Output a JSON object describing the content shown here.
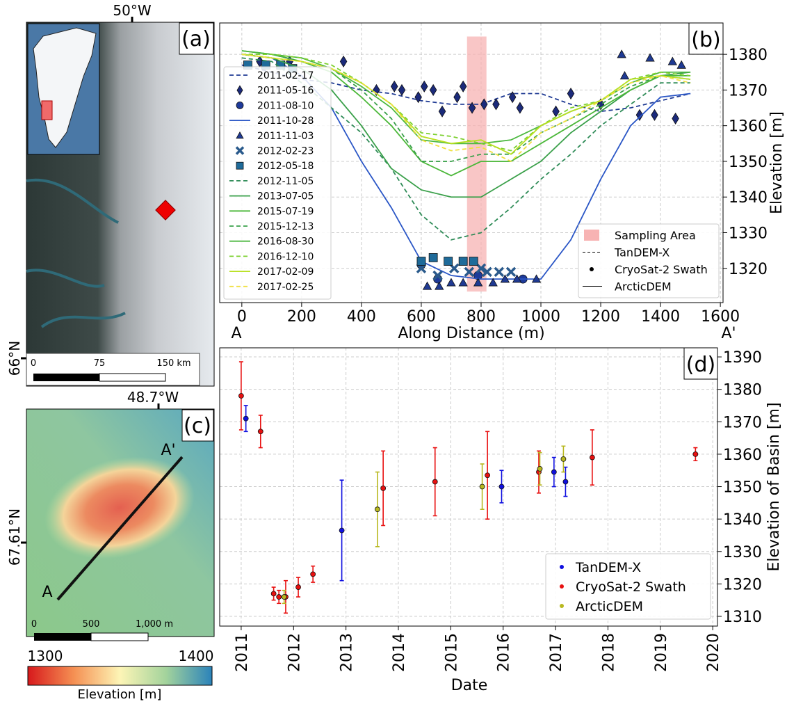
{
  "panels": {
    "a": {
      "label": "(a)",
      "lon_label": "50°W",
      "lat_label": "66°N",
      "scale": [
        "0",
        "75",
        "150 km"
      ]
    },
    "c": {
      "label": "(c)",
      "lon_label": "48.7°W",
      "lat_label": "67.61°N",
      "start": "A",
      "end": "A'",
      "scale": [
        "0",
        "500",
        "1,000 m"
      ]
    },
    "colorbar": {
      "min": 1300,
      "max": 1400,
      "label": "Elevation [m]"
    }
  },
  "chart_data": [
    {
      "type": "line",
      "panel_label": "(b)",
      "x_label": "Along Distance (m)",
      "y_label": "Elevation [m]",
      "start_label": "A",
      "end_label": "A'",
      "xlim": [
        -74,
        1609
      ],
      "ylim": [
        1310.4,
        1388.8
      ],
      "xticks": [
        0,
        200,
        400,
        600,
        800,
        1000,
        1200,
        1400,
        1600
      ],
      "yticks": [
        1320,
        1330,
        1340,
        1350,
        1360,
        1370,
        1380
      ],
      "grid": true,
      "sampling_area": {
        "name": "Sampling Area",
        "x": [
          753,
          818
        ],
        "y": [
          1313.5,
          1385
        ],
        "color": "#f7b3b3"
      },
      "style_legend": [
        {
          "name": "Sampling Area",
          "symbol": "rect"
        },
        {
          "name": "TanDEM-X",
          "symbol": "dashed"
        },
        {
          "name": "CryoSat-2 Swath",
          "symbol": "dot"
        },
        {
          "name": "ArcticDEM",
          "symbol": "solid"
        }
      ],
      "series": [
        {
          "name": "2011-02-17",
          "color": "#1f3a93",
          "style": "dashed",
          "x": [
            0,
            100,
            200,
            300,
            400,
            500,
            600,
            700,
            800,
            900,
            1000,
            1100,
            1200,
            1300,
            1400,
            1500
          ],
          "values": [
            1377,
            1375,
            1373,
            1372,
            1370,
            1369,
            1367,
            1366,
            1366,
            1369,
            1369,
            1366,
            1364,
            1365,
            1367,
            1369
          ]
        },
        {
          "name": "2011-05-16",
          "color": "#1b2a7a",
          "marker": "diamond",
          "x": [
            60,
            160,
            340,
            450,
            510,
            535,
            590,
            610,
            640,
            670,
            720,
            740,
            770,
            810,
            850,
            905,
            930,
            1050,
            1100,
            1200,
            1330,
            1380,
            1450
          ],
          "values": [
            1378,
            1378,
            1378,
            1370,
            1371,
            1370,
            1368,
            1371,
            1370,
            1364,
            1368,
            1371,
            1365,
            1366,
            1366,
            1368,
            1365,
            1364,
            1369,
            1366,
            1363,
            1363,
            1362
          ]
        },
        {
          "name": "2011-08-10",
          "color": "#1e3a9a",
          "marker": "circle",
          "x": [
            600,
            655,
            790,
            940
          ],
          "values": [
            1321,
            1317,
            1318,
            1317
          ]
        },
        {
          "name": "2011-10-28",
          "color": "#2a56c6",
          "style": "solid",
          "x": [
            0,
            100,
            200,
            300,
            400,
            500,
            600,
            700,
            800,
            900,
            1000,
            1100,
            1200,
            1300,
            1400,
            1500
          ],
          "values": [
            1380,
            1379,
            1374,
            1365,
            1350,
            1337,
            1322,
            1318,
            1317,
            1317,
            1317,
            1328,
            1345,
            1360,
            1368,
            1369
          ]
        },
        {
          "name": "2011-11-03",
          "color": "#1f3a93",
          "marker": "triangle",
          "x": [
            620,
            660,
            700,
            740,
            790,
            840,
            880,
            920,
            985,
            1270,
            1280,
            1365,
            1440,
            1470
          ],
          "values": [
            1315,
            1315,
            1316,
            1316,
            1316,
            1316,
            1317,
            1317,
            1317,
            1380,
            1374,
            1379,
            1378,
            1377
          ]
        },
        {
          "name": "2012-02-23",
          "color": "#2a5a8c",
          "marker": "x",
          "x": [
            600,
            655,
            710,
            760,
            800,
            820,
            860,
            900
          ],
          "values": [
            1320,
            1318,
            1320,
            1319,
            1320,
            1319,
            1319,
            1319
          ]
        },
        {
          "name": "2012-05-18",
          "color": "#1f6b9a",
          "marker": "square",
          "x": [
            20,
            80,
            130,
            170,
            600,
            640,
            690,
            740,
            775
          ],
          "values": [
            1377,
            1377,
            1377,
            1376,
            1322,
            1323,
            1322,
            1322,
            1322
          ]
        },
        {
          "name": "2012-11-05",
          "color": "#2e8b57",
          "style": "dashed",
          "x": [
            0,
            100,
            200,
            300,
            400,
            500,
            600,
            700,
            800,
            900,
            1000,
            1100,
            1200,
            1300,
            1400,
            1500
          ],
          "values": [
            1379,
            1378,
            1372,
            1365,
            1358,
            1348,
            1335,
            1328,
            1330,
            1337,
            1345,
            1352,
            1360,
            1366,
            1372,
            1372
          ]
        },
        {
          "name": "2013-07-05",
          "color": "#3aa04a",
          "style": "solid",
          "x": [
            0,
            100,
            200,
            300,
            400,
            500,
            600,
            700,
            800,
            900,
            1000,
            1100,
            1200,
            1300,
            1400,
            1500
          ],
          "values": [
            1380,
            1379,
            1376,
            1370,
            1360,
            1348,
            1342,
            1340,
            1340,
            1345,
            1350,
            1358,
            1364,
            1370,
            1374,
            1375
          ]
        },
        {
          "name": "2015-07-19",
          "color": "#4cb83a",
          "style": "solid",
          "x": [
            0,
            100,
            200,
            300,
            400,
            500,
            600,
            700,
            800,
            900,
            1000,
            1100,
            1200,
            1300,
            1400,
            1500
          ],
          "values": [
            1381,
            1380,
            1378,
            1375,
            1368,
            1360,
            1350,
            1346,
            1350,
            1350,
            1355,
            1360,
            1365,
            1370,
            1374,
            1374
          ]
        },
        {
          "name": "2015-12-13",
          "color": "#3aa04a",
          "style": "dashed",
          "x": [
            0,
            100,
            200,
            300,
            400,
            500,
            600,
            700,
            800,
            900,
            1000,
            1100,
            1200,
            1300,
            1400,
            1500
          ],
          "values": [
            1380,
            1380,
            1378,
            1376,
            1370,
            1362,
            1350,
            1350,
            1352,
            1352,
            1358,
            1362,
            1366,
            1371,
            1374,
            1373
          ]
        },
        {
          "name": "2016-08-30",
          "color": "#4cb840",
          "style": "solid",
          "x": [
            0,
            100,
            200,
            300,
            400,
            500,
            600,
            700,
            800,
            900,
            1000,
            1100,
            1200,
            1300,
            1400,
            1500
          ],
          "values": [
            1381,
            1380,
            1379,
            1376,
            1371,
            1365,
            1356,
            1355,
            1355,
            1356,
            1360,
            1364,
            1367,
            1372,
            1375,
            1375
          ]
        },
        {
          "name": "2016-12-10",
          "color": "#7dd030",
          "style": "dashed",
          "x": [
            0,
            100,
            200,
            300,
            400,
            500,
            600,
            700,
            800,
            900,
            1000,
            1100,
            1200,
            1300,
            1400,
            1500
          ],
          "values": [
            1380,
            1380,
            1379,
            1377,
            1372,
            1366,
            1358,
            1357,
            1355,
            1353,
            1360,
            1365,
            1367,
            1373,
            1375,
            1374
          ]
        },
        {
          "name": "2017-02-09",
          "color": "#b8e020",
          "style": "solid",
          "x": [
            0,
            100,
            200,
            300,
            400,
            500,
            600,
            700,
            800,
            900,
            1000,
            1100,
            1200,
            1300,
            1400,
            1500
          ],
          "values": [
            1380,
            1379,
            1378,
            1376,
            1372,
            1366,
            1357,
            1355,
            1356,
            1352,
            1360,
            1364,
            1367,
            1373,
            1374,
            1373
          ]
        },
        {
          "name": "2017-02-25",
          "color": "#f0e040",
          "style": "dashed",
          "x": [
            0,
            100,
            200,
            300,
            400,
            500,
            600,
            700,
            800,
            900,
            1000,
            1100,
            1200,
            1300,
            1400,
            1500
          ],
          "values": [
            1380,
            1379,
            1378,
            1376,
            1372,
            1366,
            1356,
            1353,
            1354,
            1350,
            1358,
            1362,
            1367,
            1372,
            1374,
            1372
          ]
        }
      ]
    },
    {
      "type": "errorbar",
      "panel_label": "(d)",
      "x_label": "Date",
      "y_label": "Elevation of Basin [m]",
      "xlim": [
        2010.59,
        2020.09
      ],
      "ylim": [
        1307,
        1392.8
      ],
      "xticks": [
        2011,
        2012,
        2013,
        2014,
        2015,
        2016,
        2017,
        2018,
        2019,
        2020
      ],
      "yticks": [
        1310,
        1320,
        1330,
        1340,
        1350,
        1360,
        1370,
        1380,
        1390
      ],
      "grid": true,
      "series": [
        {
          "name": "TanDEM-X",
          "color": "#1010e0",
          "x": [
            2011.09,
            2012.92,
            2015.97,
            2016.97,
            2017.19
          ],
          "values": [
            1371,
            1336.5,
            1350,
            1354.5,
            1351.5
          ],
          "errors": [
            4,
            15.5,
            5,
            4.5,
            4.5
          ]
        },
        {
          "name": "CryoSat-2 Swath",
          "color": "#e81010",
          "x": [
            2011.0,
            2011.37,
            2011.62,
            2011.72,
            2011.85,
            2012.09,
            2012.37,
            2013.71,
            2014.7,
            2015.7,
            2016.68,
            2017.7,
            2019.67
          ],
          "values": [
            1378,
            1367,
            1317,
            1316,
            1316,
            1319,
            1323,
            1349.5,
            1351.5,
            1353.5,
            1354.5,
            1359,
            1360
          ],
          "errors": [
            10.5,
            5,
            2,
            2,
            5,
            3,
            2.5,
            11.5,
            10.5,
            13.5,
            6.5,
            8.5,
            2
          ]
        },
        {
          "name": "ArcticDEM",
          "color": "#b8b820",
          "x": [
            2011.82,
            2013.6,
            2015.6,
            2016.7,
            2017.15
          ],
          "values": [
            1316,
            1343,
            1350,
            1355.5,
            1358.5
          ],
          "errors": [
            2,
            11.5,
            7,
            5,
            4
          ]
        }
      ]
    }
  ]
}
